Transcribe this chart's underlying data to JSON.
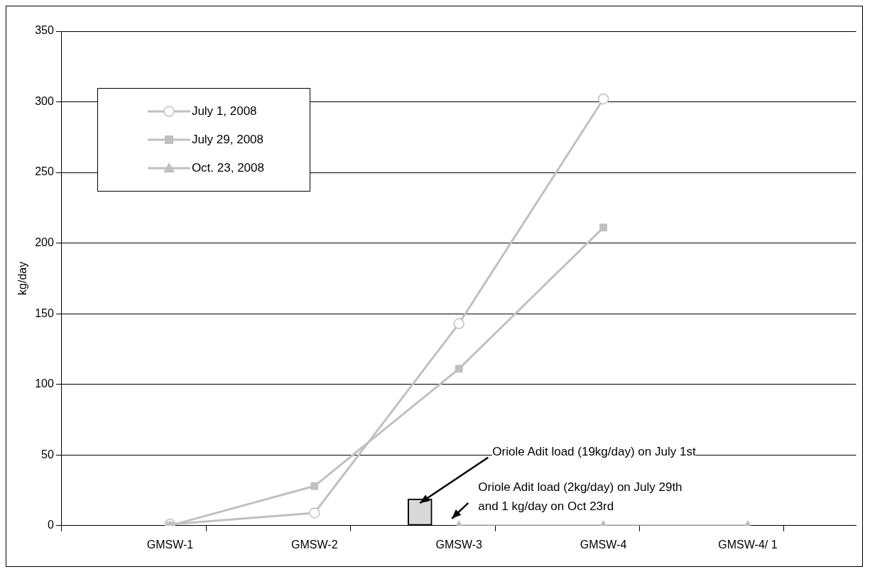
{
  "chart_data": {
    "type": "line",
    "ylabel": "kg/day",
    "categories": [
      "GMSW-1",
      "GMSW-2",
      "GMSW-3",
      "GMSW-4",
      "GMSW-4/ 1"
    ],
    "series": [
      {
        "name": "July 1, 2008",
        "color": "#c0c0c0",
        "marker": "circle",
        "values": [
          1,
          9,
          143,
          302,
          null
        ]
      },
      {
        "name": "July 29, 2008",
        "color": "#c0c0c0",
        "marker": "square",
        "values": [
          0,
          28,
          111,
          211,
          null
        ]
      },
      {
        "name": "Oct. 23, 2008",
        "color": "#c0c0c0",
        "marker": "triangle",
        "values": [
          0,
          null,
          0,
          0,
          0
        ]
      },
      {
        "type": "bar",
        "color": "#d9d9d9",
        "values": [
          null,
          null,
          19,
          null,
          null
        ]
      }
    ],
    "ylim": [
      0,
      350
    ],
    "yticks": [
      0,
      50,
      100,
      150,
      200,
      250,
      300,
      350
    ],
    "grid": "y",
    "legend": "top left",
    "annotations": [
      "Oriole Adit load (19kg/day) on July 1st",
      "Oriole Adit load (2kg/day) on July 29th\nand 1 kg/day on Oct 23rd"
    ]
  }
}
